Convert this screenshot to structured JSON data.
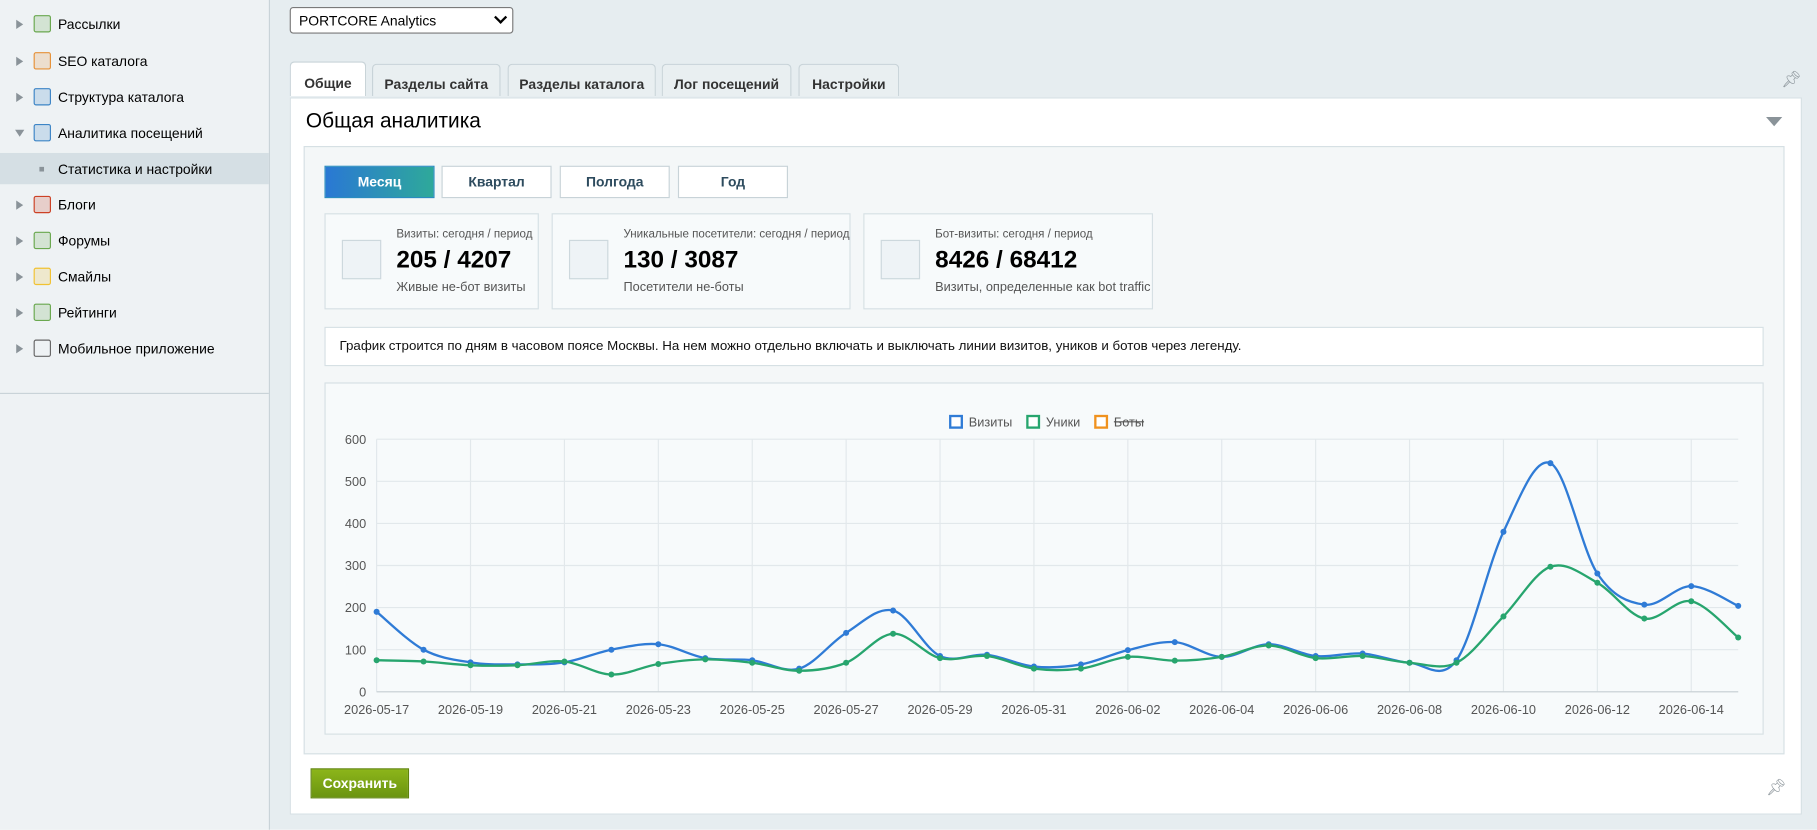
{
  "sidebar": {
    "items": [
      {
        "label": "Рассылки"
      },
      {
        "label": "SEO каталога"
      },
      {
        "label": "Структура каталога"
      },
      {
        "label": "Аналитика посещений"
      },
      {
        "label": "Статистика и настройки"
      },
      {
        "label": "Блоги"
      },
      {
        "label": "Форумы"
      },
      {
        "label": "Смайлы"
      },
      {
        "label": "Рейтинги"
      },
      {
        "label": "Мобильное приложение"
      }
    ]
  },
  "site_select": "PORTCORE Analytics",
  "tabs": [
    "Общие",
    "Разделы сайта",
    "Разделы каталога",
    "Лог посещений",
    "Настройки"
  ],
  "panel_title": "Общая аналитика",
  "periods": [
    "Месяц",
    "Квартал",
    "Полгода",
    "Год"
  ],
  "stats": [
    {
      "label": "Визиты: сегодня / период",
      "value": "205 / 4207",
      "note": "Живые не-бот визиты"
    },
    {
      "label": "Уникальные посетители: сегодня / период",
      "value": "130 / 3087",
      "note": "Посетители не-боты"
    },
    {
      "label": "Бот-визиты: сегодня / период",
      "value": "8426 / 68412",
      "note": "Визиты, определенные как bot traffic"
    }
  ],
  "note": "График строится по дням в часовом поясе Москвы. На нем можно отдельно включать и выключать линии визитов, уников и ботов через легенду.",
  "chart_data": {
    "type": "line",
    "categories": [
      "2026-05-17",
      null,
      "2026-05-19",
      null,
      "2026-05-21",
      null,
      "2026-05-23",
      null,
      "2026-05-25",
      null,
      "2026-05-27",
      null,
      "2026-05-29",
      null,
      "2026-05-31",
      null,
      "2026-06-02",
      null,
      "2026-06-04",
      null,
      "2026-06-06",
      null,
      "2026-06-08",
      null,
      "2026-06-10",
      null,
      "2026-06-12",
      null,
      "2026-06-14",
      null
    ],
    "series": [
      {
        "name": "Визиты",
        "color": "#2f7bd6",
        "values": [
          190,
          100,
          70,
          65,
          70,
          100,
          113,
          80,
          75,
          55,
          140,
          193,
          85,
          88,
          60,
          65,
          99,
          118,
          83,
          113,
          85,
          91,
          69,
          75,
          380,
          543,
          281,
          207,
          251,
          204
        ]
      },
      {
        "name": "Уники",
        "color": "#27a56e",
        "values": [
          75,
          72,
          63,
          63,
          72,
          41,
          66,
          77,
          69,
          50,
          69,
          138,
          80,
          85,
          55,
          55,
          83,
          74,
          83,
          110,
          80,
          85,
          69,
          69,
          179,
          297,
          259,
          174,
          215,
          129
        ]
      },
      {
        "name": "Боты",
        "color": "#f0921e",
        "hidden": true
      }
    ],
    "ylim": [
      0,
      600
    ],
    "yticks": [
      0,
      100,
      200,
      300,
      400,
      500,
      600
    ],
    "grid": true,
    "legend": "top"
  },
  "save_button": "Сохранить"
}
